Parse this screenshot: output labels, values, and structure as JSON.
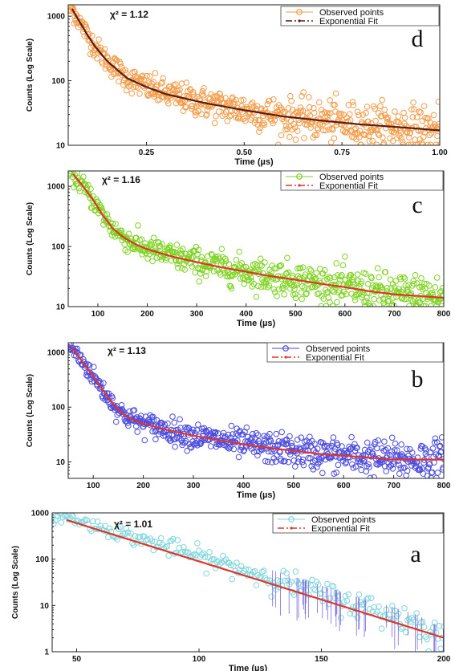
{
  "chart_data": [
    {
      "type": "scatter",
      "panel_label": "d",
      "chi_label": "χ² = 1.12",
      "xlabel": "Time (µs)",
      "ylabel": "Counts (Log Scale)",
      "xlim": [
        0.05,
        1.0
      ],
      "ylim": [
        10,
        1500
      ],
      "y_scale": "log",
      "xticks": [
        "0.25",
        "0.50",
        "0.75",
        "1.00"
      ],
      "xtick_values": [
        0.25,
        0.5,
        0.75,
        1.0
      ],
      "yticks": [
        "10",
        "100",
        "1000"
      ],
      "ytick_values": [
        10,
        100,
        1000
      ],
      "legend_position": "top-right",
      "series": [
        {
          "name": "Observed points",
          "color": "#f39c4a",
          "marker": "circle",
          "x": [
            0.06,
            0.08,
            0.1,
            0.12,
            0.15,
            0.2,
            0.25,
            0.3,
            0.4,
            0.5,
            0.6,
            0.7,
            0.8,
            0.9,
            1.0
          ],
          "y": [
            1300,
            800,
            500,
            330,
            200,
            110,
            80,
            62,
            45,
            35,
            28,
            24,
            21,
            19,
            17
          ]
        },
        {
          "name": "Exponential Fit",
          "color": "#5a1a10",
          "marker": "line",
          "x": [
            0.06,
            0.08,
            0.1,
            0.12,
            0.15,
            0.2,
            0.25,
            0.3,
            0.4,
            0.5,
            0.6,
            0.7,
            0.8,
            0.9,
            1.0
          ],
          "y": [
            1300,
            800,
            500,
            330,
            200,
            110,
            80,
            62,
            45,
            35,
            28,
            24,
            21,
            19,
            17
          ]
        }
      ]
    },
    {
      "type": "scatter",
      "panel_label": "c",
      "chi_label": "χ² = 1.16",
      "xlabel": "Time (µs)",
      "ylabel": "Counts (Log Scale)",
      "xlim": [
        40,
        800
      ],
      "ylim": [
        10,
        1800
      ],
      "y_scale": "log",
      "xticks": [
        "100",
        "200",
        "300",
        "400",
        "500",
        "600",
        "700",
        "800"
      ],
      "xtick_values": [
        100,
        200,
        300,
        400,
        500,
        600,
        700,
        800
      ],
      "yticks": [
        "10",
        "100",
        "1000"
      ],
      "ytick_values": [
        10,
        100,
        1000
      ],
      "legend_position": "top-right",
      "series": [
        {
          "name": "Observed points",
          "color": "#7ed321",
          "marker": "circle",
          "x": [
            50,
            70,
            90,
            110,
            130,
            150,
            175,
            200,
            250,
            300,
            350,
            400,
            450,
            500,
            550,
            600,
            650,
            700,
            750,
            800
          ],
          "y": [
            1600,
            1000,
            600,
            330,
            200,
            145,
            110,
            90,
            68,
            55,
            45,
            38,
            32,
            28,
            24,
            21,
            18,
            16,
            15,
            14
          ]
        },
        {
          "name": "Exponential Fit",
          "color": "#e0342a",
          "marker": "line",
          "x": [
            50,
            70,
            90,
            110,
            130,
            150,
            175,
            200,
            250,
            300,
            350,
            400,
            450,
            500,
            550,
            600,
            650,
            700,
            750,
            800
          ],
          "y": [
            1600,
            1000,
            600,
            330,
            200,
            145,
            110,
            90,
            68,
            55,
            45,
            38,
            32,
            28,
            24,
            21,
            18,
            16,
            15,
            14
          ]
        }
      ]
    },
    {
      "type": "scatter",
      "panel_label": "b",
      "chi_label": "χ² = 1.13",
      "xlabel": "Time (µs)",
      "ylabel": "Counts (Log Scale)",
      "xlim": [
        50,
        800
      ],
      "ylim": [
        5,
        1500
      ],
      "y_scale": "log",
      "xticks": [
        "100",
        "200",
        "300",
        "400",
        "500",
        "600",
        "700",
        "800"
      ],
      "xtick_values": [
        100,
        200,
        300,
        400,
        500,
        600,
        700,
        800
      ],
      "yticks": [
        "10",
        "100",
        "1000"
      ],
      "ytick_values": [
        10,
        100,
        1000
      ],
      "legend_position": "top-right",
      "series": [
        {
          "name": "Observed points",
          "color": "#4a4ae0",
          "marker": "circle",
          "x": [
            55,
            75,
            95,
            115,
            135,
            155,
            180,
            200,
            250,
            300,
            350,
            400,
            450,
            500,
            550,
            600,
            650,
            700,
            750,
            800
          ],
          "y": [
            1300,
            750,
            420,
            230,
            130,
            80,
            58,
            50,
            38,
            30,
            25,
            21,
            18,
            16,
            14,
            13,
            12,
            11,
            11,
            11
          ]
        },
        {
          "name": "Exponential Fit",
          "color": "#e0342a",
          "marker": "line",
          "x": [
            55,
            75,
            95,
            115,
            135,
            155,
            180,
            200,
            250,
            300,
            350,
            400,
            450,
            500,
            550,
            600,
            650,
            700,
            750,
            800
          ],
          "y": [
            1300,
            750,
            420,
            230,
            130,
            80,
            58,
            50,
            38,
            30,
            25,
            21,
            18,
            16,
            14,
            13,
            12,
            11,
            11,
            11
          ]
        }
      ]
    },
    {
      "type": "scatter",
      "panel_label": "a",
      "chi_label": "χ² = 1.01",
      "xlabel": "Time (µs)",
      "ylabel": "Counts (Log Scale)",
      "xlim": [
        40,
        200
      ],
      "ylim": [
        1,
        1000
      ],
      "y_scale": "log",
      "xticks": [
        "50",
        "100",
        "150",
        "200"
      ],
      "xtick_values": [
        50,
        100,
        150,
        200
      ],
      "yticks": [
        "1",
        "10",
        "100",
        "1000"
      ],
      "ytick_values": [
        1,
        10,
        100,
        1000
      ],
      "legend_position": "top-right",
      "series": [
        {
          "name": "Observed points",
          "color": "#7fd6dc",
          "marker": "circle",
          "x": [
            46,
            60,
            75,
            90,
            105,
            120,
            135,
            150,
            165,
            180,
            190,
            200
          ],
          "y": [
            800,
            480,
            280,
            165,
            95,
            55,
            32,
            18,
            10,
            6,
            4,
            2
          ]
        },
        {
          "name": "Exponential Fit",
          "color": "#e0342a",
          "marker": "line",
          "x": [
            46,
            200
          ],
          "y": [
            700,
            2
          ]
        }
      ]
    }
  ]
}
